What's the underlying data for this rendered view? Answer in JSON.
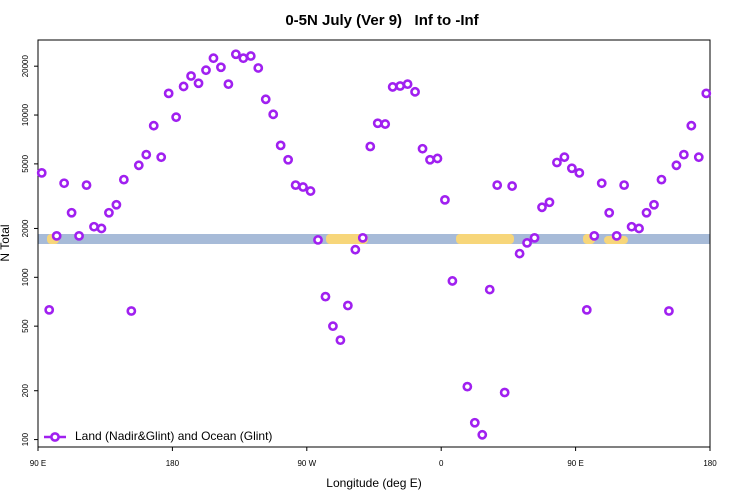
{
  "chart_data": {
    "type": "scatter",
    "title": "0-5N July (Ver 9)   Inf to -Inf",
    "xlabel": "Longitude (deg E)",
    "ylabel": "N Total",
    "log_y": true,
    "legend": "lower left",
    "xlim": [
      90,
      540
    ],
    "ylim": [
      90,
      29000
    ],
    "xticks": [
      {
        "value": 90,
        "label": "90 E"
      },
      {
        "value": 180,
        "label": "180"
      },
      {
        "value": 270,
        "label": "90 W"
      },
      {
        "value": 360,
        "label": "0"
      },
      {
        "value": 450,
        "label": "90 E"
      },
      {
        "value": 540,
        "label": "180"
      }
    ],
    "yticks": [
      100,
      200,
      500,
      1000,
      2000,
      5000,
      10000,
      20000
    ],
    "series": [
      {
        "name": "Land (Nadir&Glint) and Ocean (Glint)",
        "color": "#a020f0",
        "x": [
          92.5,
          97.5,
          102.5,
          107.5,
          112.5,
          117.5,
          122.5,
          127.5,
          132.5,
          137.5,
          142.5,
          147.5,
          152.5,
          157.5,
          162.5,
          167.5,
          172.5,
          177.5,
          182.5,
          187.5,
          192.5,
          197.5,
          202.5,
          207.5,
          212.5,
          217.5,
          222.5,
          227.5,
          232.5,
          237.5,
          242.5,
          247.5,
          252.5,
          257.5,
          262.5,
          267.5,
          272.5,
          277.5,
          282.5,
          287.5,
          292.5,
          297.5,
          302.5,
          307.5,
          312.5,
          317.5,
          322.5,
          327.5,
          332.5,
          337.5,
          342.5,
          347.5,
          352.5,
          357.5,
          362.5,
          367.5,
          377.5,
          382.5,
          387.5,
          392.5,
          397.5,
          402.5,
          407.5,
          412.5,
          417.5,
          422.5,
          427.5,
          432.5,
          437.5,
          442.5,
          447.5,
          452.5,
          457.5,
          462.5,
          467.5,
          472.5,
          477.5,
          482.5,
          487.5,
          492.5,
          497.5,
          502.5,
          507.5,
          512.5,
          517.5,
          522.5,
          527.5,
          532.5,
          537.5
        ],
        "values": [
          4400,
          630,
          1800,
          3800,
          2500,
          1800,
          3700,
          2050,
          2000,
          2500,
          2800,
          4000,
          620,
          4900,
          5700,
          8600,
          5500,
          13600,
          9700,
          15000,
          17400,
          15700,
          18900,
          22400,
          19700,
          15500,
          23700,
          22400,
          23100,
          19500,
          12500,
          10100,
          6500,
          5300,
          3700,
          3600,
          3400,
          1700,
          760,
          500,
          410,
          670,
          1480,
          1750,
          6400,
          8900,
          8800,
          14900,
          15100,
          15500,
          13900,
          6200,
          5300,
          5400,
          3000,
          950,
          212,
          127,
          107,
          840,
          3700,
          195,
          3650,
          1400,
          1630,
          1750,
          2700,
          2900,
          5100,
          5500,
          4700,
          4400,
          630,
          1800,
          3800,
          2500,
          1800,
          3700,
          2050,
          2000,
          2500,
          2800,
          4000,
          620,
          4900,
          5700,
          8600,
          5500,
          13600
        ]
      }
    ]
  }
}
